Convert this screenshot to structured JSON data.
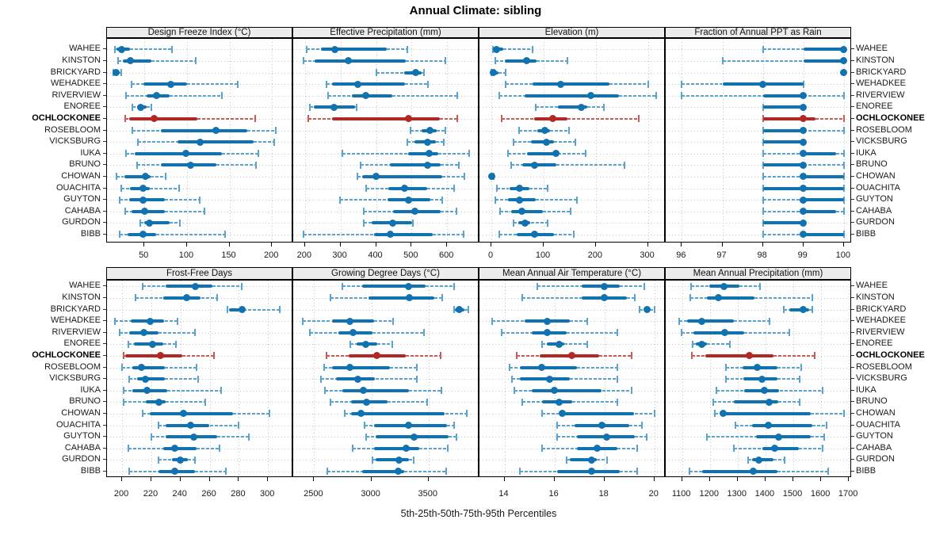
{
  "colors": {
    "series_normal_solid": "#1072b0",
    "series_normal_faded": "#5aa2d0",
    "series_highlight_solid": "#b22825",
    "series_highlight_faded": "#cc5a55",
    "grid": "#c4c4c4",
    "strip_bg": "#ececec",
    "border": "#000000"
  },
  "chart_data": {
    "type": "scatter",
    "variant": "multi_panel_percentile_dotplot",
    "title": "Annual Climate: sibling",
    "xlabel": "5th-25th-50th-75th-95th Percentiles",
    "legend_position": "none",
    "grid": "dotted",
    "percentiles": [
      5,
      25,
      50,
      75,
      95
    ],
    "highlighted_site": "OCHLOCKONEE",
    "sites": [
      "WAHEE",
      "KINSTON",
      "BRICKYARD",
      "WEHADKEE",
      "RIVERVIEW",
      "ENOREE",
      "OCHLOCKONEE",
      "ROSEBLOOM",
      "VICKSBURG",
      "IUKA",
      "BRUNO",
      "CHOWAN",
      "OUACHITA",
      "GUYTON",
      "CAHABA",
      "GURDON",
      "BIBB"
    ],
    "panels": [
      {
        "label": "Design Freeze Index (°C)",
        "row": 0,
        "xlim": [
          6,
          225
        ],
        "ticks": [
          50,
          100,
          150,
          200
        ],
        "values": {
          "WAHEE": [
            15,
            17,
            23,
            33,
            82
          ],
          "KINSTON": [
            19,
            25,
            33,
            58,
            110
          ],
          "BRICKYARD": [
            13,
            14,
            17,
            19,
            23
          ],
          "WEHADKEE": [
            35,
            49,
            81,
            100,
            160
          ],
          "RIVERVIEW": [
            28,
            53,
            64,
            80,
            141
          ],
          "ENOREE": [
            36,
            42,
            46,
            53,
            58
          ],
          "OCHLOCKONEE": [
            27,
            32,
            61,
            112,
            180
          ],
          "ROSEBLOOM": [
            36,
            69,
            134,
            171,
            204
          ],
          "VICKSBURG": [
            42,
            89,
            115,
            178,
            203
          ],
          "IUKA": [
            28,
            39,
            99,
            141,
            184
          ],
          "BRUNO": [
            41,
            69,
            104,
            135,
            181
          ],
          "CHOWAN": [
            17,
            26,
            51,
            57,
            75
          ],
          "OUACHITA": [
            23,
            33,
            48,
            56,
            91
          ],
          "GUYTON": [
            21,
            32,
            48,
            74,
            115
          ],
          "CAHABA": [
            27,
            35,
            50,
            74,
            121
          ],
          "GURDON": [
            45,
            50,
            56,
            80,
            92
          ],
          "BIBB": [
            21,
            30,
            48,
            64,
            145
          ]
        }
      },
      {
        "label": "Effective Precipitation (mm)",
        "row": 0,
        "xlim": [
          167,
          691
        ],
        "ticks": [
          200,
          300,
          400,
          500,
          600
        ],
        "values": {
          "WAHEE": [
            205,
            245,
            285,
            430,
            487
          ],
          "KINSTON": [
            195,
            228,
            322,
            484,
            596
          ],
          "BRICKYARD": [
            400,
            478,
            512,
            528,
            535
          ],
          "WEHADKEE": [
            260,
            277,
            348,
            482,
            545
          ],
          "RIVERVIEW": [
            266,
            333,
            372,
            445,
            628
          ],
          "ENOREE": [
            214,
            225,
            281,
            341,
            345
          ],
          "OCHLOCKONEE": [
            210,
            277,
            492,
            579,
            628
          ],
          "ROSEBLOOM": [
            497,
            529,
            551,
            570,
            596
          ],
          "VICKSBURG": [
            487,
            507,
            545,
            568,
            590
          ],
          "IUKA": [
            305,
            490,
            549,
            574,
            661
          ],
          "BRUNO": [
            357,
            440,
            544,
            581,
            634
          ],
          "CHOWAN": [
            348,
            360,
            400,
            587,
            648
          ],
          "OUACHITA": [
            372,
            434,
            480,
            544,
            619
          ],
          "GUYTON": [
            298,
            432,
            492,
            553,
            587
          ],
          "CAHABA": [
            365,
            447,
            510,
            581,
            626
          ],
          "GURDON": [
            365,
            387,
            447,
            501,
            504
          ],
          "BIBB": [
            196,
            395,
            440,
            560,
            646
          ]
        }
      },
      {
        "label": "Elevation (m)",
        "row": 0,
        "xlim": [
          -23,
          334
        ],
        "ticks": [
          0,
          100,
          200,
          300
        ],
        "values": {
          "WAHEE": [
            2,
            3,
            10,
            22,
            78
          ],
          "KINSTON": [
            8,
            25,
            68,
            86,
            145
          ],
          "BRICKYARD": [
            0,
            1,
            4,
            13,
            27
          ],
          "WEHADKEE": [
            27,
            79,
            133,
            226,
            300
          ],
          "RIVERVIEW": [
            15,
            64,
            190,
            245,
            315
          ],
          "ENOREE": [
            85,
            127,
            172,
            184,
            215
          ],
          "OCHLOCKONEE": [
            20,
            81,
            118,
            145,
            282
          ],
          "ROSEBLOOM": [
            53,
            88,
            103,
            112,
            149
          ],
          "VICKSBURG": [
            43,
            76,
            105,
            120,
            160
          ],
          "IUKA": [
            32,
            68,
            123,
            128,
            181
          ],
          "BRUNO": [
            37,
            59,
            83,
            124,
            255
          ],
          "CHOWAN": [
            0,
            0,
            1,
            3,
            5
          ],
          "OUACHITA": [
            10,
            34,
            54,
            73,
            108
          ],
          "GUYTON": [
            7,
            32,
            54,
            85,
            164
          ],
          "CAHABA": [
            17,
            37,
            58,
            98,
            152
          ],
          "GURDON": [
            42,
            52,
            64,
            75,
            107
          ],
          "BIBB": [
            15,
            48,
            83,
            120,
            157
          ]
        }
      },
      {
        "label": "Fraction of Annual PPT as Rain",
        "row": 0,
        "xlim": [
          95.6,
          100.2
        ],
        "ticks": [
          96,
          97,
          98,
          99,
          100
        ],
        "values": {
          "WAHEE": [
            98,
            99,
            100,
            100,
            100
          ],
          "KINSTON": [
            97,
            99,
            100,
            100,
            100
          ],
          "BRICKYARD": [
            100,
            100,
            100,
            100,
            100
          ],
          "WEHADKEE": [
            96,
            97,
            98,
            99,
            99
          ],
          "RIVERVIEW": [
            96,
            98,
            99,
            99,
            100
          ],
          "ENOREE": [
            98,
            98,
            99,
            99,
            99
          ],
          "OCHLOCKONEE": [
            98,
            98,
            99,
            99.3,
            100
          ],
          "ROSEBLOOM": [
            98,
            98,
            99,
            99,
            100
          ],
          "VICKSBURG": [
            98,
            98,
            99,
            99,
            99
          ],
          "IUKA": [
            98,
            99,
            99,
            99.8,
            100
          ],
          "BRUNO": [
            98,
            98,
            99,
            99,
            100
          ],
          "CHOWAN": [
            98,
            99,
            99,
            100,
            100
          ],
          "OUACHITA": [
            98,
            98,
            99,
            100,
            100
          ],
          "GUYTON": [
            98,
            99,
            99,
            100,
            100
          ],
          "CAHABA": [
            98,
            99,
            99,
            99.8,
            100
          ],
          "GURDON": [
            98,
            98,
            99,
            99,
            99
          ],
          "BIBB": [
            98,
            99,
            99,
            100,
            100
          ]
        }
      },
      {
        "label": "Frost-Free Days",
        "row": 1,
        "xlim": [
          189.6,
          317.3
        ],
        "ticks": [
          200,
          220,
          240,
          260,
          280,
          300
        ],
        "values": {
          "WAHEE": [
            214,
            230,
            250,
            262,
            282
          ],
          "KINSTON": [
            209,
            228,
            244,
            254,
            265
          ],
          "BRICKYARD": [
            272,
            273,
            282,
            283,
            308
          ],
          "WEHADKEE": [
            195,
            206,
            219,
            229,
            238
          ],
          "RIVERVIEW": [
            198,
            205,
            215,
            225,
            250
          ],
          "ENOREE": [
            204,
            208,
            221,
            228,
            237
          ],
          "OCHLOCKONEE": [
            201,
            202,
            226,
            241,
            263
          ],
          "ROSEBLOOM": [
            200,
            207,
            213,
            229,
            251
          ],
          "VICKSBURG": [
            205,
            210,
            216,
            229,
            252
          ],
          "IUKA": [
            201,
            207,
            217,
            231,
            268
          ],
          "BRUNO": [
            201,
            216,
            225,
            230,
            257
          ],
          "CHOWAN": [
            214,
            219,
            242,
            276,
            301
          ],
          "OUACHITA": [
            225,
            230,
            247,
            260,
            280
          ],
          "GUYTON": [
            220,
            230,
            249,
            265,
            287
          ],
          "CAHABA": [
            204,
            228,
            236,
            251,
            267
          ],
          "GURDON": [
            225,
            234,
            240,
            245,
            250
          ],
          "BIBB": [
            205,
            225,
            236,
            250,
            271
          ]
        }
      },
      {
        "label": "Growing Degree Days (°C)",
        "row": 1,
        "xlim": [
          2317,
          3945
        ],
        "ticks": [
          2500,
          3000,
          3500
        ],
        "values": {
          "WAHEE": [
            2746,
            2918,
            3326,
            3474,
            3720
          ],
          "KINSTON": [
            2639,
            2978,
            3335,
            3551,
            3621
          ],
          "BRICKYARD": [
            3720,
            3730,
            3767,
            3813,
            3846
          ],
          "WEHADKEE": [
            2403,
            2653,
            2809,
            3024,
            3187
          ],
          "RIVERVIEW": [
            2461,
            2709,
            2839,
            3010,
            3458
          ],
          "ENOREE": [
            2816,
            2871,
            2948,
            3048,
            3180
          ],
          "OCHLOCKONEE": [
            2607,
            2802,
            3048,
            3303,
            3604
          ],
          "ROSEBLOOM": [
            2584,
            2653,
            2809,
            3164,
            3396
          ],
          "VICKSBURG": [
            2560,
            2693,
            2878,
            3034,
            3396
          ],
          "IUKA": [
            2593,
            2746,
            2932,
            3326,
            3614
          ],
          "BRUNO": [
            2639,
            2825,
            2955,
            3140,
            3488
          ],
          "CHOWAN": [
            2769,
            2825,
            2908,
            3644,
            3837
          ],
          "OUACHITA": [
            2941,
            3024,
            3326,
            3660,
            3720
          ],
          "GUYTON": [
            2955,
            3034,
            3372,
            3674,
            3744
          ],
          "CAHABA": [
            2839,
            3024,
            3303,
            3419,
            3667
          ],
          "GURDON": [
            3010,
            3034,
            3242,
            3326,
            3372
          ],
          "BIBB": [
            2616,
            2918,
            3233,
            3289,
            3651
          ]
        }
      },
      {
        "label": "Mean Annual Air Temperature (°C)",
        "row": 1,
        "xlim": [
          13.0,
          20.45
        ],
        "ticks": [
          14,
          16,
          18,
          20
        ],
        "values": {
          "WAHEE": [
            15.3,
            17.1,
            18.0,
            18.6,
            19.6
          ],
          "KINSTON": [
            14.7,
            17.1,
            18.0,
            18.9,
            19.2
          ],
          "BRICKYARD": [
            19.4,
            19.6,
            19.7,
            19.8,
            20.0
          ],
          "WEHADKEE": [
            13.5,
            14.8,
            15.7,
            16.6,
            17.3
          ],
          "RIVERVIEW": [
            13.9,
            15.1,
            15.7,
            16.5,
            18.5
          ],
          "ENOREE": [
            15.5,
            15.7,
            16.2,
            16.4,
            17.3
          ],
          "OCHLOCKONEE": [
            14.5,
            15.4,
            16.7,
            17.8,
            19.1
          ],
          "ROSEBLOOM": [
            14.2,
            14.6,
            15.5,
            16.9,
            18.5
          ],
          "VICKSBURG": [
            14.3,
            14.6,
            15.8,
            16.6,
            18.5
          ],
          "IUKA": [
            14.4,
            15.1,
            16.0,
            17.9,
            19.1
          ],
          "BRUNO": [
            14.7,
            15.5,
            16.2,
            16.7,
            18.5
          ],
          "CHOWAN": [
            15.5,
            16.2,
            16.3,
            19.2,
            20.0
          ],
          "OUACHITA": [
            16.1,
            16.8,
            17.9,
            19.0,
            19.5
          ],
          "GUYTON": [
            16.1,
            16.9,
            18.1,
            19.2,
            19.7
          ],
          "CAHABA": [
            15.5,
            16.9,
            17.7,
            18.5,
            19.3
          ],
          "GURDON": [
            16.5,
            16.6,
            17.5,
            17.7,
            18.1
          ],
          "BIBB": [
            14.6,
            16.1,
            17.5,
            18.6,
            19.3
          ]
        }
      },
      {
        "label": "Mean Annual Precipitation (mm)",
        "row": 1,
        "xlim": [
          1041,
          1711
        ],
        "ticks": [
          1100,
          1200,
          1300,
          1400,
          1500,
          1600,
          1700
        ],
        "values": {
          "WAHEE": [
            1132,
            1199,
            1250,
            1307,
            1381
          ],
          "KINSTON": [
            1129,
            1190,
            1231,
            1361,
            1568
          ],
          "BRICKYARD": [
            1466,
            1486,
            1536,
            1558,
            1568
          ],
          "WEHADKEE": [
            1088,
            1119,
            1171,
            1285,
            1415
          ],
          "RIVERVIEW": [
            1097,
            1142,
            1253,
            1323,
            1486
          ],
          "ENOREE": [
            1138,
            1148,
            1171,
            1190,
            1272
          ],
          "OCHLOCKONEE": [
            1135,
            1183,
            1342,
            1428,
            1577
          ],
          "ROSEBLOOM": [
            1257,
            1317,
            1371,
            1444,
            1529
          ],
          "VICKSBURG": [
            1257,
            1319,
            1386,
            1444,
            1524
          ],
          "IUKA": [
            1224,
            1323,
            1396,
            1450,
            1606
          ],
          "BRUNO": [
            1212,
            1285,
            1412,
            1447,
            1524
          ],
          "CHOWAN": [
            1218,
            1237,
            1247,
            1562,
            1682
          ],
          "OUACHITA": [
            1291,
            1352,
            1409,
            1568,
            1619
          ],
          "GUYTON": [
            1190,
            1367,
            1447,
            1562,
            1612
          ],
          "CAHABA": [
            1285,
            1390,
            1434,
            1520,
            1606
          ],
          "GURDON": [
            1336,
            1352,
            1377,
            1428,
            1469
          ],
          "BIBB": [
            1126,
            1173,
            1355,
            1444,
            1625
          ]
        }
      }
    ]
  }
}
